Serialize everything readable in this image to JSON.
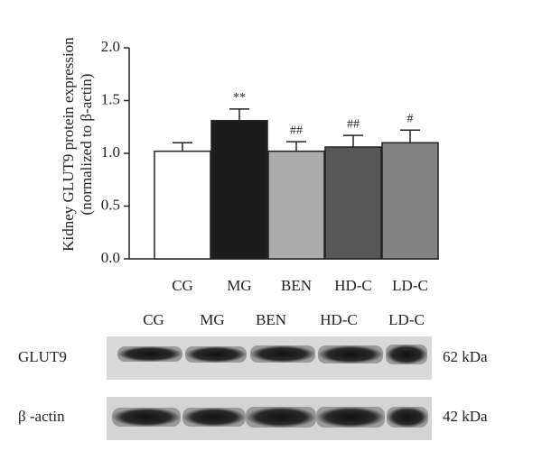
{
  "chart_data": {
    "type": "bar",
    "y_label_lines": [
      "Kidney GLUT9 protein expression",
      "(normalized to β-actin)"
    ],
    "categories": [
      "CG",
      "MG",
      "BEN",
      "HD-C",
      "LD-C"
    ],
    "values": [
      1.02,
      1.31,
      1.02,
      1.06,
      1.1
    ],
    "errors": [
      0.08,
      0.11,
      0.09,
      0.11,
      0.12
    ],
    "colors": [
      "#ffffff",
      "#1c1c1c",
      "#ababab",
      "#575757",
      "#848484"
    ],
    "significance": [
      null,
      "**",
      "##",
      "##",
      "#"
    ],
    "ylim": [
      0,
      2
    ],
    "yticks": [
      {
        "value": 0,
        "label": "0.0"
      },
      0.5,
      {
        "value": 1,
        "label": "1.0"
      },
      1.5,
      {
        "value": 2,
        "label": "2.0"
      }
    ]
  },
  "blot": {
    "lanes": [
      "CG",
      "MG",
      "BEN",
      "HD-C",
      "LD-C"
    ],
    "rows": [
      {
        "label": "GLUT9",
        "size": "62 kDa"
      },
      {
        "label": "β -actin",
        "size": "42 kDa"
      }
    ]
  }
}
